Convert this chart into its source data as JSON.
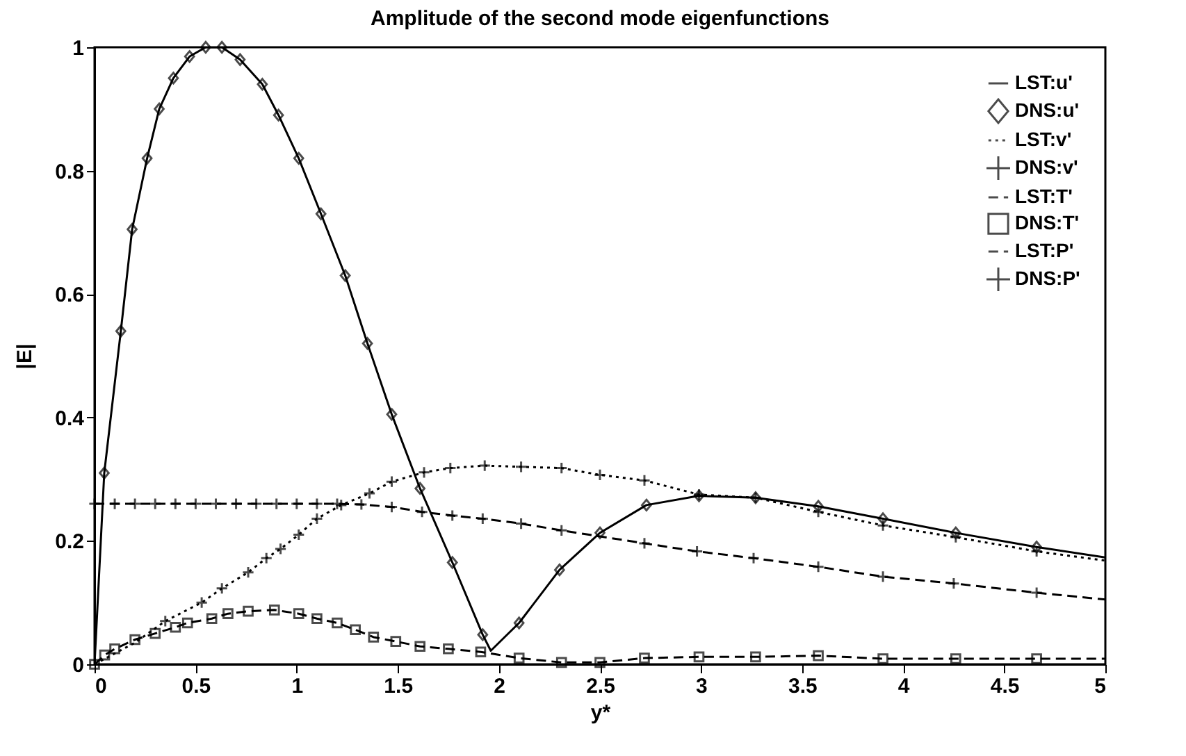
{
  "chart_data": {
    "type": "line",
    "title": "Amplitude of the second mode eigenfunctions",
    "xlabel": "y*",
    "ylabel": "|E|",
    "xlim": [
      0,
      5
    ],
    "xticks": [
      0,
      0.5,
      1,
      1.5,
      2,
      2.5,
      3,
      3.5,
      4,
      4.5,
      5
    ],
    "ylim": [
      0,
      1
    ],
    "yticks": [
      0,
      0.2,
      0.4,
      0.6,
      0.8,
      1
    ],
    "grid": false,
    "legend": "top right",
    "series": [
      {
        "name": "LST:u'",
        "type": "line",
        "color": "#000000",
        "line_style": "solid",
        "marker": "none",
        "x": [
          0,
          0.048,
          0.13,
          0.186,
          0.26,
          0.32,
          0.39,
          0.47,
          0.55,
          0.63,
          0.72,
          0.83,
          0.91,
          1.01,
          1.12,
          1.24,
          1.35,
          1.47,
          1.61,
          1.77,
          1.92,
          1.96,
          2.1,
          2.3,
          2.5,
          2.73,
          2.99,
          3.27,
          3.58,
          3.9,
          4.26,
          4.66,
          5
        ],
        "values": [
          0,
          0.31,
          0.54,
          0.705,
          0.82,
          0.9,
          0.95,
          0.985,
          1,
          1,
          0.98,
          0.94,
          0.89,
          0.82,
          0.73,
          0.63,
          0.52,
          0.405,
          0.285,
          0.165,
          0.048,
          0.022,
          0.067,
          0.153,
          0.213,
          0.258,
          0.273,
          0.27,
          0.256,
          0.236,
          0.213,
          0.19,
          0.173
        ]
      },
      {
        "name": "DNS:u'",
        "type": "scatter",
        "color": "#000000",
        "marker": "diamond",
        "x": [
          0.048,
          0.13,
          0.186,
          0.26,
          0.32,
          0.39,
          0.47,
          0.55,
          0.63,
          0.72,
          0.83,
          0.91,
          1.01,
          1.12,
          1.24,
          1.35,
          1.47,
          1.61,
          1.77,
          1.92,
          2.1,
          2.3,
          2.5,
          2.73,
          2.99,
          3.27,
          3.58,
          3.9,
          4.26,
          4.66
        ],
        "values": [
          0.31,
          0.54,
          0.705,
          0.82,
          0.9,
          0.95,
          0.985,
          1,
          1,
          0.98,
          0.94,
          0.89,
          0.82,
          0.73,
          0.63,
          0.52,
          0.405,
          0.285,
          0.165,
          0.048,
          0.067,
          0.153,
          0.213,
          0.258,
          0.273,
          0.27,
          0.256,
          0.236,
          0.213,
          0.19
        ]
      },
      {
        "name": "LST:v'",
        "type": "line",
        "color": "#000000",
        "line_style": "dotted",
        "marker": "none",
        "x": [
          0,
          0.2,
          0.35,
          0.53,
          0.63,
          0.76,
          0.85,
          0.92,
          1.01,
          1.1,
          1.22,
          1.36,
          1.47,
          1.63,
          1.76,
          1.93,
          2.11,
          2.31,
          2.5,
          2.72,
          2.99,
          3.27,
          3.58,
          3.9,
          4.26,
          4.66,
          5
        ],
        "values": [
          0,
          0.035,
          0.07,
          0.1,
          0.123,
          0.149,
          0.172,
          0.187,
          0.21,
          0.236,
          0.258,
          0.277,
          0.296,
          0.311,
          0.318,
          0.322,
          0.32,
          0.318,
          0.307,
          0.298,
          0.275,
          0.27,
          0.247,
          0.225,
          0.206,
          0.183,
          0.168
        ]
      },
      {
        "name": "DNS:v'",
        "type": "scatter",
        "color": "#000000",
        "marker": "cross",
        "x": [
          0.35,
          0.53,
          0.63,
          0.76,
          0.85,
          0.92,
          1.01,
          1.1,
          1.22,
          1.36,
          1.47,
          1.63,
          1.76,
          1.93,
          2.11,
          2.31,
          2.5,
          2.72,
          2.99,
          3.27,
          3.58,
          3.9,
          4.26,
          4.66
        ],
        "values": [
          0.07,
          0.1,
          0.123,
          0.149,
          0.172,
          0.187,
          0.21,
          0.236,
          0.258,
          0.277,
          0.296,
          0.311,
          0.318,
          0.322,
          0.32,
          0.318,
          0.307,
          0.298,
          0.275,
          0.27,
          0.247,
          0.225,
          0.206,
          0.183
        ]
      },
      {
        "name": "LST:T'",
        "type": "line",
        "color": "#000000",
        "line_style": "dashed",
        "marker": "none",
        "x": [
          0,
          0.05,
          0.1,
          0.2,
          0.3,
          0.4,
          0.46,
          0.58,
          0.66,
          0.76,
          0.89,
          1.01,
          1.1,
          1.2,
          1.29,
          1.38,
          1.49,
          1.61,
          1.75,
          1.91,
          2.1,
          2.31,
          2.5,
          2.72,
          2.99,
          3.27,
          3.58,
          3.9,
          4.26,
          4.66,
          5
        ],
        "values": [
          0,
          0.015,
          0.025,
          0.04,
          0.05,
          0.06,
          0.067,
          0.074,
          0.082,
          0.086,
          0.088,
          0.082,
          0.074,
          0.067,
          0.056,
          0.044,
          0.037,
          0.029,
          0.025,
          0.02,
          0.01,
          0.003,
          0.003,
          0.01,
          0.012,
          0.012,
          0.014,
          0.009,
          0.009,
          0.009,
          0.009
        ]
      },
      {
        "name": "DNS:T'",
        "type": "scatter",
        "color": "#000000",
        "marker": "square",
        "x": [
          0,
          0.05,
          0.1,
          0.2,
          0.3,
          0.4,
          0.46,
          0.58,
          0.66,
          0.76,
          0.89,
          1.01,
          1.1,
          1.2,
          1.29,
          1.38,
          1.49,
          1.61,
          1.75,
          1.91,
          2.1,
          2.31,
          2.5,
          2.72,
          2.99,
          3.27,
          3.58,
          3.9,
          4.26,
          4.66
        ],
        "values": [
          0,
          0.015,
          0.025,
          0.04,
          0.05,
          0.06,
          0.067,
          0.074,
          0.082,
          0.086,
          0.088,
          0.082,
          0.074,
          0.067,
          0.056,
          0.044,
          0.037,
          0.029,
          0.025,
          0.02,
          0.01,
          0.003,
          0.003,
          0.01,
          0.012,
          0.012,
          0.014,
          0.009,
          0.009,
          0.009
        ]
      },
      {
        "name": "LST:P'",
        "type": "line",
        "color": "#000000",
        "line_style": "dashed",
        "marker": "none",
        "x": [
          0,
          0.1,
          0.2,
          0.3,
          0.4,
          0.5,
          0.6,
          0.7,
          0.8,
          0.9,
          1,
          1.1,
          1.2,
          1.32,
          1.47,
          1.62,
          1.77,
          1.92,
          2.11,
          2.31,
          2.72,
          2.98,
          3.26,
          3.58,
          3.9,
          4.25,
          4.66,
          5
        ],
        "values": [
          0.26,
          0.26,
          0.26,
          0.26,
          0.26,
          0.26,
          0.26,
          0.26,
          0.26,
          0.26,
          0.26,
          0.26,
          0.26,
          0.259,
          0.255,
          0.247,
          0.241,
          0.236,
          0.228,
          0.217,
          0.196,
          0.183,
          0.172,
          0.158,
          0.142,
          0.131,
          0.116,
          0.105
        ]
      },
      {
        "name": "DNS:P'",
        "type": "scatter",
        "color": "#000000",
        "marker": "cross",
        "x": [
          0,
          0.1,
          0.2,
          0.3,
          0.4,
          0.5,
          0.6,
          0.7,
          0.8,
          0.9,
          1,
          1.1,
          1.2,
          1.32,
          1.47,
          1.62,
          1.77,
          1.92,
          2.11,
          2.31,
          2.72,
          2.98,
          3.26,
          3.58,
          3.9,
          4.25,
          4.66
        ],
        "values": [
          0.26,
          0.26,
          0.26,
          0.26,
          0.26,
          0.26,
          0.26,
          0.26,
          0.26,
          0.26,
          0.26,
          0.26,
          0.26,
          0.259,
          0.255,
          0.247,
          0.241,
          0.236,
          0.228,
          0.217,
          0.196,
          0.183,
          0.172,
          0.158,
          0.142,
          0.131,
          0.116
        ]
      }
    ]
  }
}
